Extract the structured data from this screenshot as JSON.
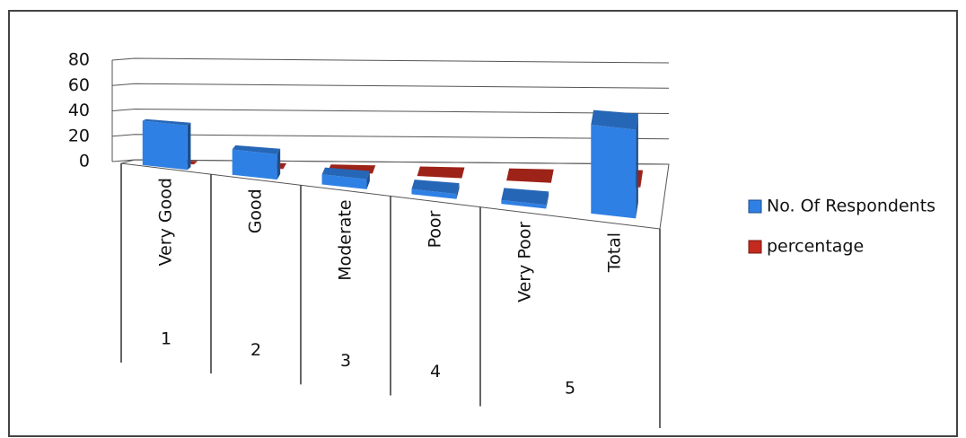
{
  "chart_data": {
    "type": "bar3d",
    "categories": [
      "Very Good",
      "Good",
      "Moderate",
      "Poor",
      "Very Poor",
      "Total"
    ],
    "group_labels": [
      "1",
      "2",
      "3",
      "4",
      "5",
      null
    ],
    "series": [
      {
        "name": "No. Of Respondents",
        "color": "#2f80e4",
        "values": [
          35,
          20,
          8,
          4,
          3,
          70
        ]
      },
      {
        "name": "percentage",
        "color": "#c42a1e",
        "values": [
          0.5,
          0.29,
          0.11,
          0.06,
          0.04,
          1
        ]
      }
    ],
    "ylim": [
      0,
      80
    ],
    "yticks": [
      0,
      20,
      40,
      60,
      80
    ],
    "grid": true,
    "legend": "right"
  }
}
